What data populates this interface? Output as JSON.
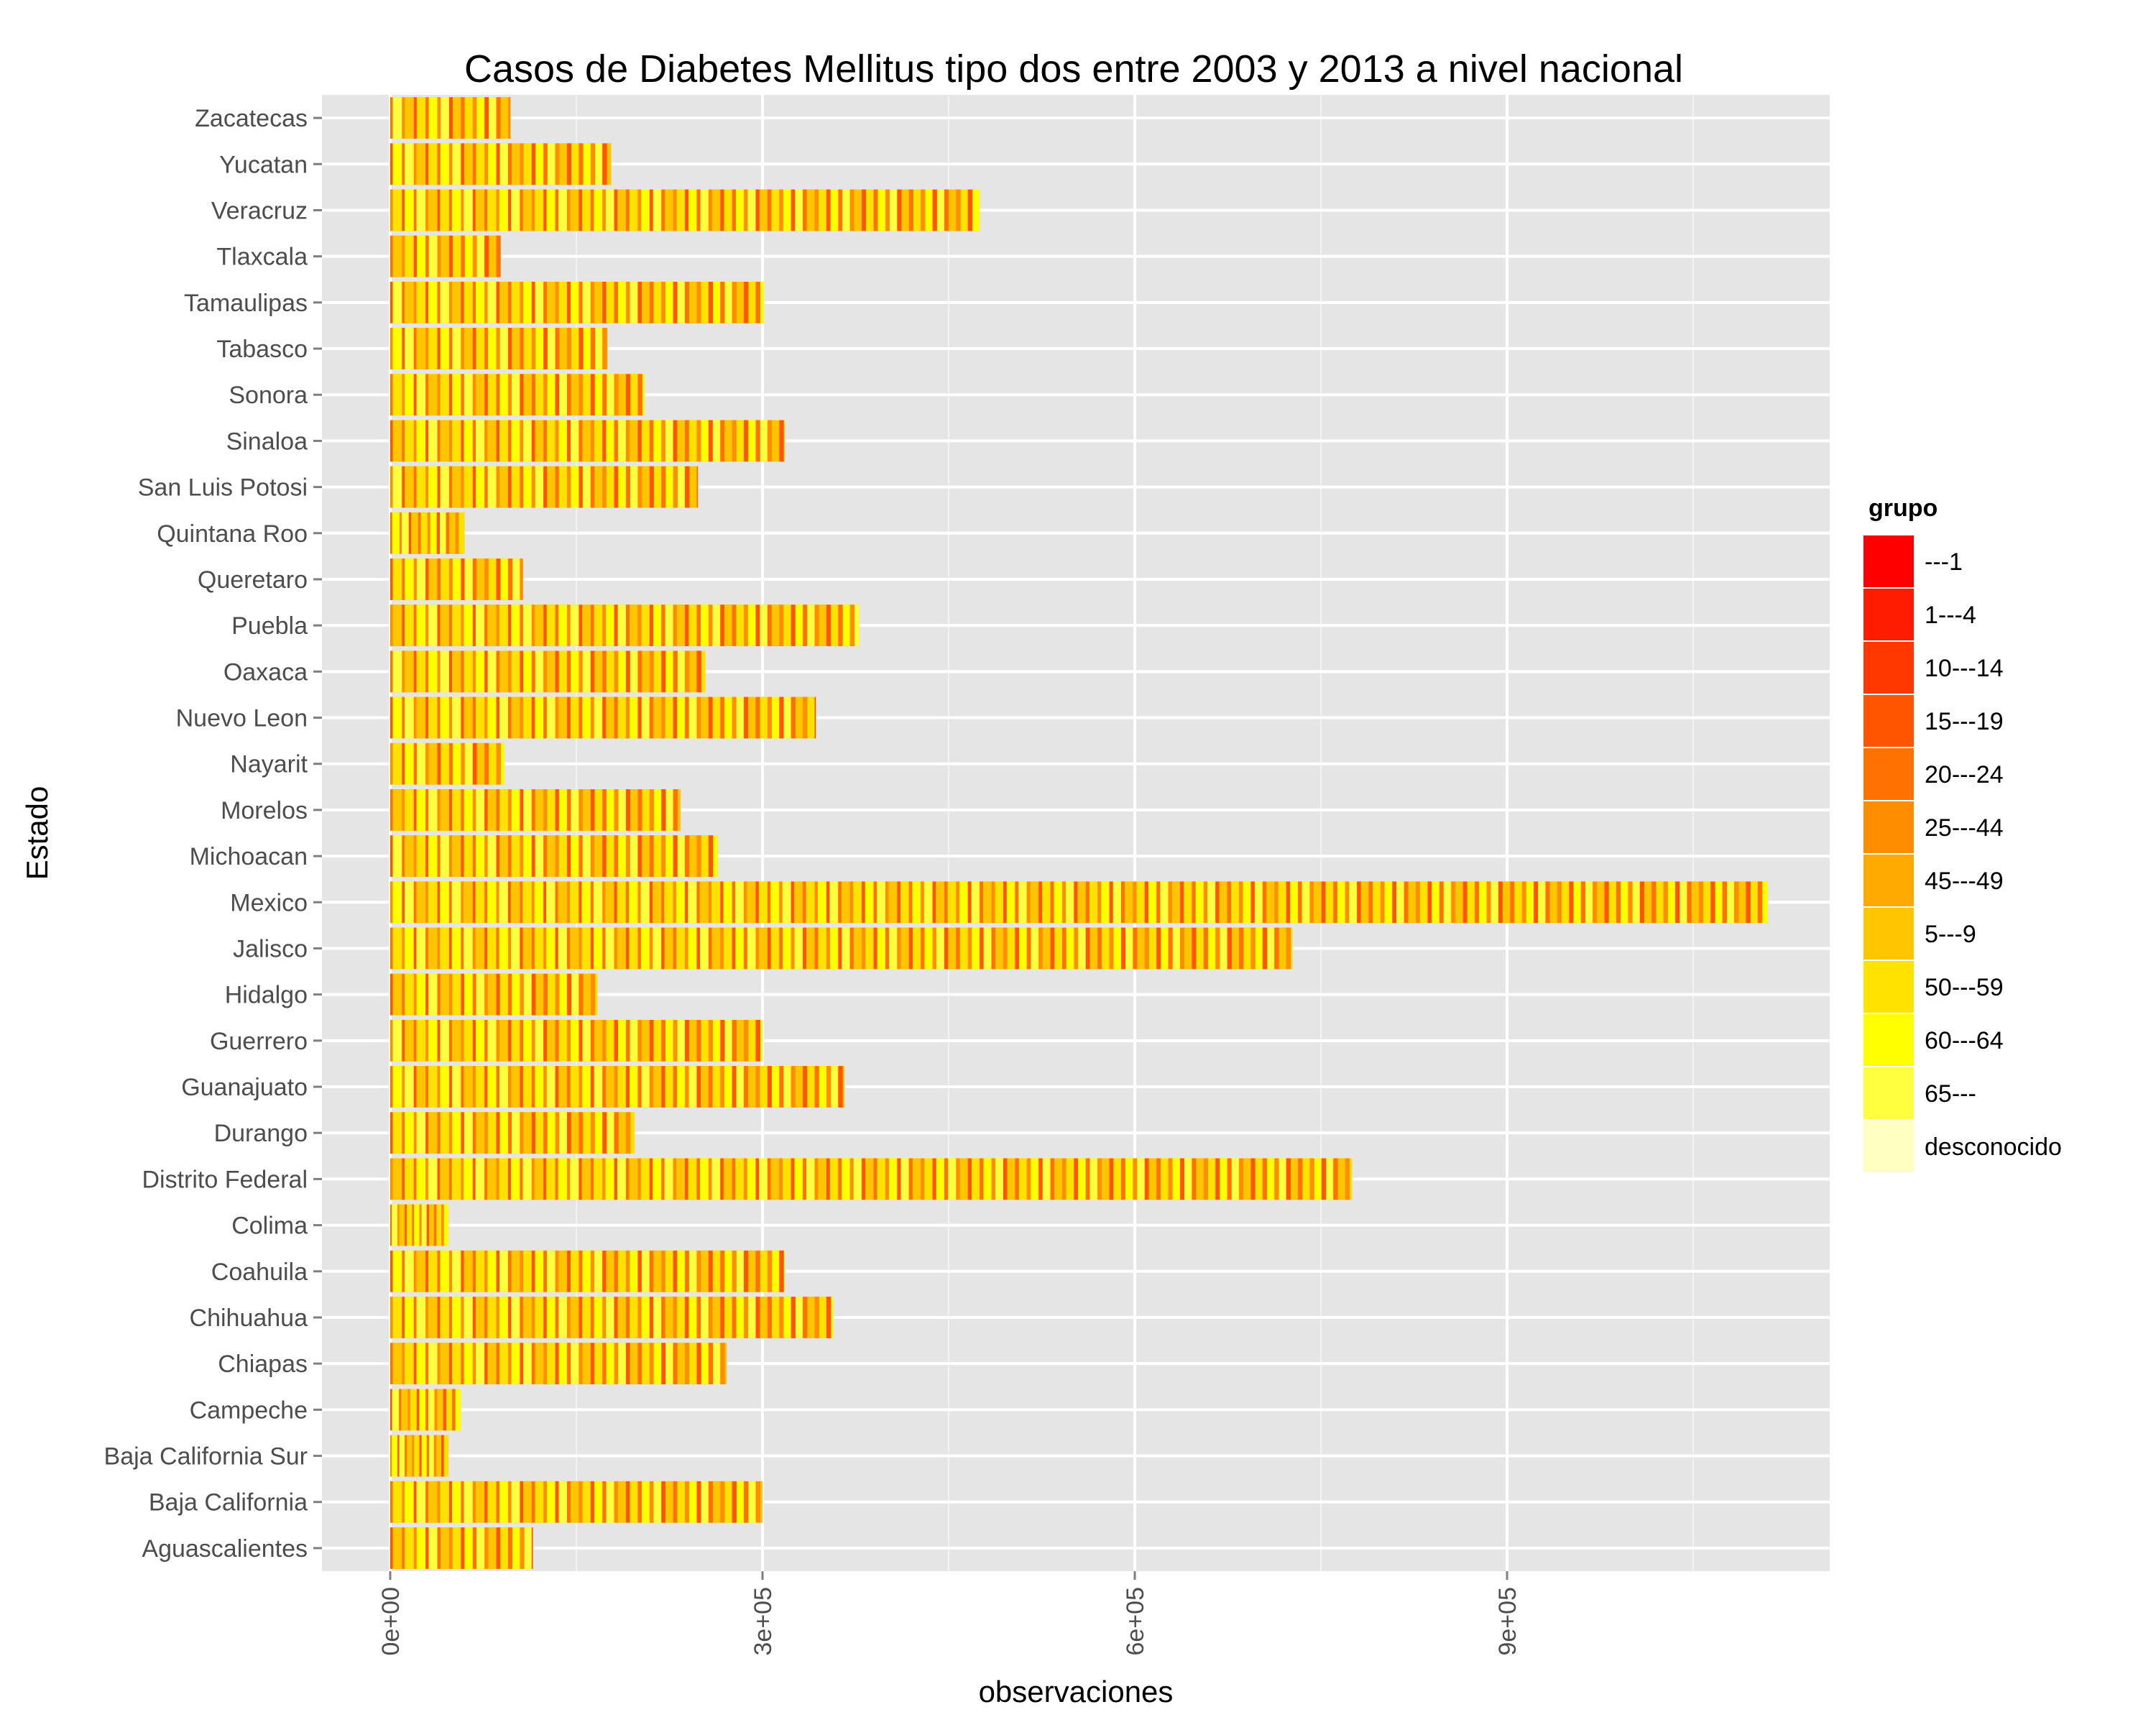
{
  "chart_data": {
    "type": "bar",
    "orientation": "horizontal",
    "stacked": true,
    "title": "Casos de Diabetes Mellitus tipo dos entre 2003 y 2013 a nivel nacional",
    "xlabel": "observaciones",
    "ylabel": "Estado",
    "xlim": [
      -55000,
      1160000
    ],
    "x_ticks": [
      0,
      300000,
      600000,
      900000
    ],
    "x_tick_labels": [
      "0e+00",
      "3e+05",
      "6e+05",
      "9e+05"
    ],
    "grid": true,
    "legend_position": "right",
    "legend": {
      "title": "grupo",
      "entries": [
        {
          "label": "---1",
          "color": "#FF0000"
        },
        {
          "label": "1---4",
          "color": "#FF1C00"
        },
        {
          "label": "10---14",
          "color": "#FF3800"
        },
        {
          "label": "15---19",
          "color": "#FF5500"
        },
        {
          "label": "20---24",
          "color": "#FF7100"
        },
        {
          "label": "25---44",
          "color": "#FF8D00"
        },
        {
          "label": "45---49",
          "color": "#FFAA00"
        },
        {
          "label": "5---9",
          "color": "#FFC600"
        },
        {
          "label": "50---59",
          "color": "#FFE200"
        },
        {
          "label": "60---64",
          "color": "#FFFF00"
        },
        {
          "label": "65---",
          "color": "#FFFF40"
        },
        {
          "label": "desconocido",
          "color": "#FFFFBF"
        }
      ]
    },
    "categories": [
      "Aguascalientes",
      "Baja California",
      "Baja California Sur",
      "Campeche",
      "Chiapas",
      "Chihuahua",
      "Coahuila",
      "Colima",
      "Distrito Federal",
      "Durango",
      "Guanajuato",
      "Guerrero",
      "Hidalgo",
      "Jalisco",
      "Mexico",
      "Michoacan",
      "Morelos",
      "Nayarit",
      "Nuevo Leon",
      "Oaxaca",
      "Puebla",
      "Queretaro",
      "Quintana Roo",
      "San Luis Potosi",
      "Sinaloa",
      "Sonora",
      "Tabasco",
      "Tamaulipas",
      "Tlaxcala",
      "Veracruz",
      "Yucatan",
      "Zacatecas"
    ],
    "totals": [
      115000,
      300000,
      47000,
      57000,
      271000,
      357000,
      318000,
      47000,
      775000,
      197000,
      366000,
      300000,
      167000,
      727000,
      1110000,
      264000,
      234000,
      92000,
      343000,
      254000,
      378000,
      107000,
      60000,
      248000,
      318000,
      205000,
      175000,
      301000,
      89000,
      475000,
      178000,
      97000
    ]
  }
}
